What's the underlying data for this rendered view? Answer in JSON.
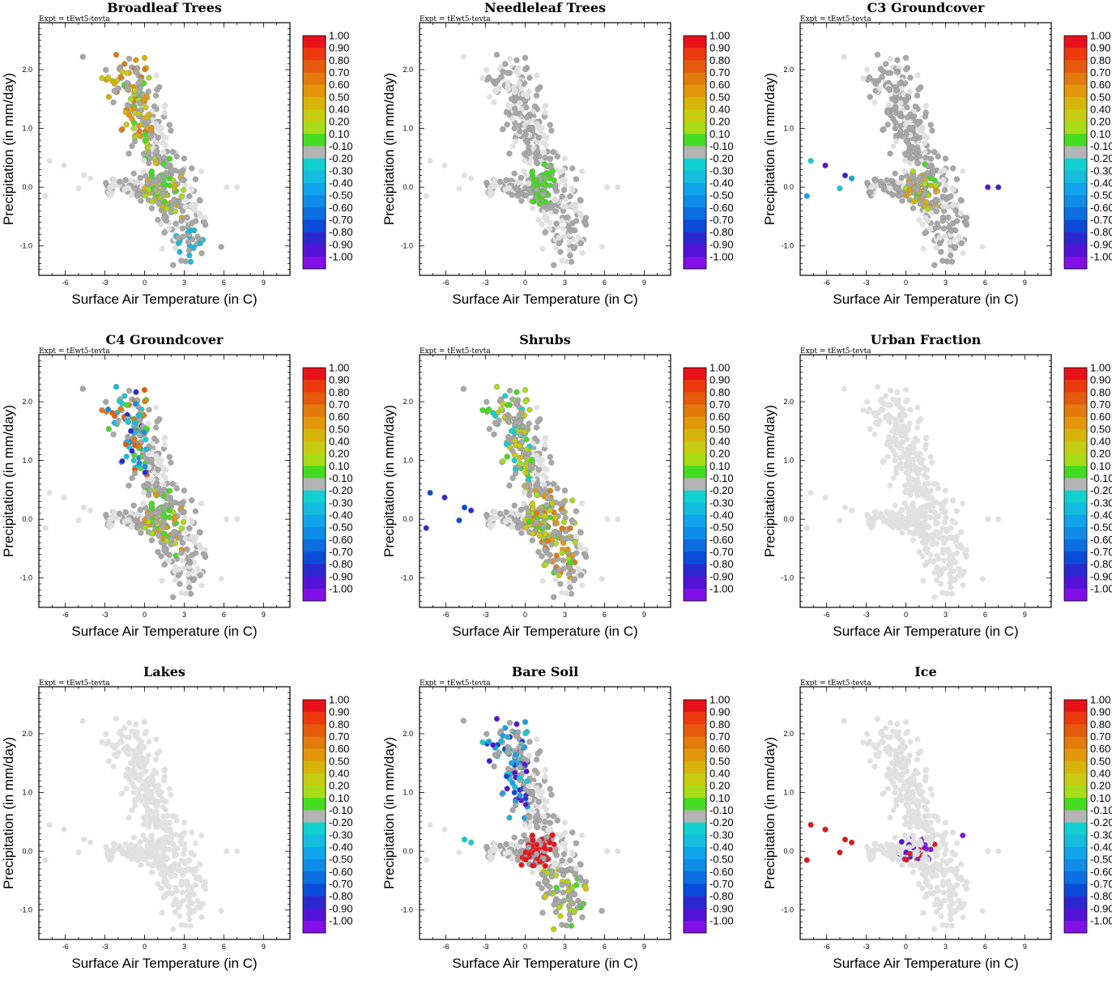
{
  "figure": {
    "xlabel": "Surface Air Temperature (in C)",
    "ylabel": "Precipitation (in mm/day)",
    "expt_label": "Expt = tEwt5-tevta"
  },
  "colorbar": {
    "levels": [
      "1.00",
      "0.90",
      "0.80",
      "0.70",
      "0.60",
      "0.50",
      "0.40",
      "0.20",
      "0.10",
      "-0.10",
      "-0.20",
      "-0.30",
      "-0.40",
      "-0.50",
      "-0.60",
      "-0.70",
      "-0.80",
      "-0.90",
      "-1.00"
    ],
    "colors": [
      "#e8121a",
      "#ec3a0e",
      "#e55a0c",
      "#e27a0c",
      "#e2980a",
      "#d6b40a",
      "#c8cc10",
      "#a8dc16",
      "#44dc20",
      "#b4b4b4",
      "#12d0d0",
      "#14bce0",
      "#10a4ec",
      "#0e8ce8",
      "#0c6ee0",
      "#0a4cd8",
      "#2c28d0",
      "#5414d8",
      "#8210e6"
    ]
  },
  "chart_data": [
    {
      "type": "scatter",
      "title": "Broadleaf Trees",
      "xlabel": "Surface Air Temperature (in C)",
      "ylabel": "Precipitation (in mm/day)",
      "xlim": [
        -8,
        11
      ],
      "ylim": [
        -1.5,
        2.8
      ],
      "xticks": [
        -6,
        -3,
        0,
        3,
        6,
        9
      ],
      "yticks": [
        -1.0,
        0.0,
        1.0,
        2.0
      ],
      "color_class": "broadleaf"
    },
    {
      "type": "scatter",
      "title": "Needleleaf Trees",
      "xlabel": "Surface Air Temperature (in C)",
      "ylabel": "Precipitation (in mm/day)",
      "xlim": [
        -8,
        11
      ],
      "ylim": [
        -1.5,
        2.8
      ],
      "xticks": [
        -6,
        -3,
        0,
        3,
        6,
        9
      ],
      "yticks": [
        -1.0,
        0.0,
        1.0,
        2.0
      ],
      "color_class": "needleleaf"
    },
    {
      "type": "scatter",
      "title": "C3 Groundcover",
      "xlabel": "Surface Air Temperature (in C)",
      "ylabel": "Precipitation (in mm/day)",
      "xlim": [
        -8,
        11
      ],
      "ylim": [
        -1.5,
        2.8
      ],
      "xticks": [
        -6,
        -3,
        0,
        3,
        6,
        9
      ],
      "yticks": [
        -1.0,
        0.0,
        1.0,
        2.0
      ],
      "color_class": "c3"
    },
    {
      "type": "scatter",
      "title": "C4 Groundcover",
      "xlabel": "Surface Air Temperature (in C)",
      "ylabel": "Precipitation (in mm/day)",
      "xlim": [
        -8,
        11
      ],
      "ylim": [
        -1.5,
        2.8
      ],
      "xticks": [
        -6,
        -3,
        0,
        3,
        6,
        9
      ],
      "yticks": [
        -1.0,
        0.0,
        1.0,
        2.0
      ],
      "color_class": "c4"
    },
    {
      "type": "scatter",
      "title": "Shrubs",
      "xlabel": "Surface Air Temperature (in C)",
      "ylabel": "Precipitation (in mm/day)",
      "xlim": [
        -8,
        11
      ],
      "ylim": [
        -1.5,
        2.8
      ],
      "xticks": [
        -6,
        -3,
        0,
        3,
        6,
        9
      ],
      "yticks": [
        -1.0,
        0.0,
        1.0,
        2.0
      ],
      "color_class": "shrubs"
    },
    {
      "type": "scatter",
      "title": "Urban Fraction",
      "xlabel": "Surface Air Temperature (in C)",
      "ylabel": "Precipitation (in mm/day)",
      "xlim": [
        -8,
        11
      ],
      "ylim": [
        -1.5,
        2.8
      ],
      "xticks": [
        -6,
        -3,
        0,
        3,
        6,
        9
      ],
      "yticks": [
        -1.0,
        0.0,
        1.0,
        2.0
      ],
      "color_class": "none"
    },
    {
      "type": "scatter",
      "title": "Lakes",
      "xlabel": "Surface Air Temperature (in C)",
      "ylabel": "Precipitation (in mm/day)",
      "xlim": [
        -8,
        11
      ],
      "ylim": [
        -1.5,
        2.8
      ],
      "xticks": [
        -6,
        -3,
        0,
        3,
        6,
        9
      ],
      "yticks": [
        -1.0,
        0.0,
        1.0,
        2.0
      ],
      "color_class": "none"
    },
    {
      "type": "scatter",
      "title": "Bare Soil",
      "xlabel": "Surface Air Temperature (in C)",
      "ylabel": "Precipitation (in mm/day)",
      "xlim": [
        -8,
        11
      ],
      "ylim": [
        -1.5,
        2.8
      ],
      "xticks": [
        -6,
        -3,
        0,
        3,
        6,
        9
      ],
      "yticks": [
        -1.0,
        0.0,
        1.0,
        2.0
      ],
      "color_class": "baresoil"
    },
    {
      "type": "scatter",
      "title": "Ice",
      "xlabel": "Surface Air Temperature (in C)",
      "ylabel": "Precipitation (in mm/day)",
      "xlim": [
        -8,
        11
      ],
      "ylim": [
        -1.5,
        2.8
      ],
      "xticks": [
        -6,
        -3,
        0,
        3,
        6,
        9
      ],
      "yticks": [
        -1.0,
        0.0,
        1.0,
        2.0
      ],
      "color_class": "ice"
    }
  ]
}
